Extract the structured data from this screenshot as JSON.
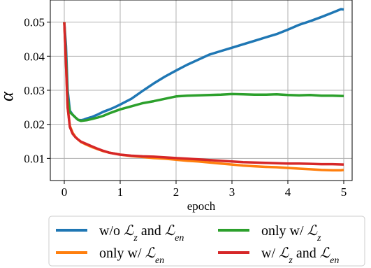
{
  "chart_data": {
    "type": "line",
    "title": "",
    "xlabel": "epoch",
    "ylabel": "α",
    "xlim": [
      -0.25,
      5.15
    ],
    "ylim": [
      0.0035,
      0.0565
    ],
    "xticks": [
      0,
      1,
      2,
      3,
      4,
      5
    ],
    "xtick_labels": [
      "0",
      "1",
      "2",
      "3",
      "4",
      "5"
    ],
    "yticks": [
      0.01,
      0.02,
      0.03,
      0.04,
      0.05
    ],
    "ytick_labels": [
      "0.01",
      "0.02",
      "0.03",
      "0.04",
      "0.05"
    ],
    "grid": true,
    "legend_position": "bottom (below axes), 2 columns",
    "series": [
      {
        "name": "w/o ℒz and ℒen",
        "legend": {
          "pre": "w/o ",
          "m1": "ℒ",
          "s1": "z",
          "mid": " and ",
          "m2": "ℒ",
          "s2": "en",
          "post": ""
        },
        "color": "#1f77b4",
        "x": [
          0,
          0.03,
          0.06,
          0.1,
          0.15,
          0.2,
          0.25,
          0.3,
          0.35,
          0.4,
          0.5,
          0.6,
          0.7,
          0.8,
          0.9,
          1.0,
          1.2,
          1.4,
          1.6,
          1.8,
          2.0,
          2.2,
          2.4,
          2.6,
          2.8,
          3.0,
          3.2,
          3.4,
          3.6,
          3.8,
          4.0,
          4.2,
          4.4,
          4.6,
          4.8,
          4.95,
          5.0
        ],
        "y": [
          0.05,
          0.043,
          0.03,
          0.024,
          0.0228,
          0.022,
          0.0213,
          0.0212,
          0.0214,
          0.0217,
          0.0222,
          0.0229,
          0.0237,
          0.0243,
          0.025,
          0.0258,
          0.0275,
          0.0298,
          0.032,
          0.034,
          0.0358,
          0.0375,
          0.039,
          0.0405,
          0.0415,
          0.0425,
          0.0435,
          0.0445,
          0.0455,
          0.0465,
          0.0478,
          0.0492,
          0.0503,
          0.0515,
          0.0528,
          0.0538,
          0.0537
        ]
      },
      {
        "name": "only w/ ℒen",
        "legend": {
          "pre": "only w/ ",
          "m1": "ℒ",
          "s1": "en",
          "mid": "",
          "m2": "",
          "s2": "",
          "post": ""
        },
        "color": "#ff7f0e",
        "x": [
          0,
          0.03,
          0.06,
          0.1,
          0.15,
          0.2,
          0.25,
          0.3,
          0.4,
          0.5,
          0.6,
          0.7,
          0.8,
          1.0,
          1.2,
          1.4,
          1.6,
          1.8,
          2.0,
          2.2,
          2.4,
          2.6,
          2.8,
          3.0,
          3.2,
          3.4,
          3.6,
          3.8,
          4.0,
          4.2,
          4.4,
          4.6,
          4.8,
          4.95,
          5.0
        ],
        "y": [
          0.05,
          0.038,
          0.025,
          0.0195,
          0.0175,
          0.0163,
          0.0155,
          0.0148,
          0.014,
          0.0133,
          0.0127,
          0.0121,
          0.0117,
          0.0111,
          0.0107,
          0.0104,
          0.0101,
          0.0099,
          0.0096,
          0.0093,
          0.0091,
          0.0088,
          0.0085,
          0.0082,
          0.0079,
          0.0077,
          0.0075,
          0.0074,
          0.0072,
          0.007,
          0.0068,
          0.0066,
          0.0065,
          0.0065,
          0.0066
        ]
      },
      {
        "name": "only w/ ℒz",
        "legend": {
          "pre": "only w/ ",
          "m1": "ℒ",
          "s1": "z",
          "mid": "",
          "m2": "",
          "s2": "",
          "post": ""
        },
        "color": "#2ca02c",
        "x": [
          0,
          0.03,
          0.06,
          0.1,
          0.15,
          0.2,
          0.25,
          0.3,
          0.4,
          0.5,
          0.6,
          0.7,
          0.8,
          0.9,
          1.0,
          1.2,
          1.4,
          1.6,
          1.8,
          2.0,
          2.2,
          2.4,
          2.6,
          2.8,
          3.0,
          3.2,
          3.4,
          3.6,
          3.8,
          4.0,
          4.2,
          4.4,
          4.6,
          4.8,
          5.0
        ],
        "y": [
          0.05,
          0.04,
          0.028,
          0.0235,
          0.0228,
          0.022,
          0.0213,
          0.021,
          0.0212,
          0.0216,
          0.022,
          0.0225,
          0.0232,
          0.0238,
          0.0244,
          0.0253,
          0.0262,
          0.0268,
          0.0275,
          0.0282,
          0.0284,
          0.0285,
          0.0286,
          0.0287,
          0.0289,
          0.0288,
          0.0287,
          0.0287,
          0.0288,
          0.0286,
          0.0285,
          0.0286,
          0.0284,
          0.0284,
          0.0283
        ]
      },
      {
        "name": "w/ ℒz and ℒen",
        "legend": {
          "pre": "w/ ",
          "m1": "ℒ",
          "s1": "z",
          "mid": " and ",
          "m2": "ℒ",
          "s2": "en",
          "post": ""
        },
        "color": "#d62728",
        "x": [
          0,
          0.03,
          0.06,
          0.1,
          0.15,
          0.2,
          0.25,
          0.3,
          0.4,
          0.5,
          0.6,
          0.7,
          0.8,
          1.0,
          1.2,
          1.4,
          1.6,
          1.8,
          2.0,
          2.2,
          2.4,
          2.6,
          2.8,
          3.0,
          3.2,
          3.4,
          3.6,
          3.8,
          4.0,
          4.2,
          4.4,
          4.6,
          4.8,
          5.0
        ],
        "y": [
          0.05,
          0.038,
          0.025,
          0.0192,
          0.0172,
          0.0162,
          0.0155,
          0.0149,
          0.0142,
          0.0135,
          0.0128,
          0.0122,
          0.0117,
          0.0111,
          0.0108,
          0.0106,
          0.0105,
          0.0103,
          0.0101,
          0.0099,
          0.0097,
          0.0095,
          0.0093,
          0.0091,
          0.0089,
          0.0088,
          0.0087,
          0.0086,
          0.0085,
          0.0085,
          0.0084,
          0.0083,
          0.0083,
          0.0082
        ]
      }
    ],
    "legend_order": [
      0,
      2,
      1,
      3
    ]
  }
}
